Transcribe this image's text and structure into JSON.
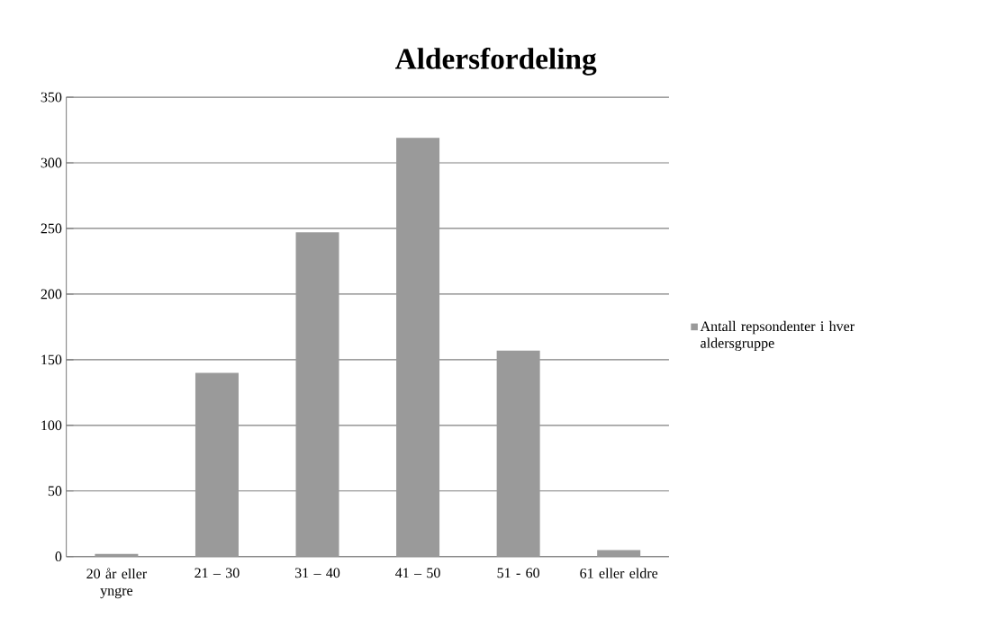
{
  "chart_data": {
    "type": "bar",
    "title": "Aldersfordeling",
    "categories": [
      "20 år eller yngre",
      "21 – 30",
      "31 – 40",
      "41 – 50",
      "51 - 60",
      "61 eller eldre"
    ],
    "series": [
      {
        "name": "Antall repsondenter i hver aldersgruppe",
        "color": "#9a9a9a",
        "values": [
          2,
          140,
          247,
          319,
          157,
          5
        ]
      }
    ],
    "ylim": [
      0,
      350
    ],
    "yticks": [
      0,
      50,
      100,
      150,
      200,
      250,
      300,
      350
    ],
    "grid": "y",
    "legend": "right"
  }
}
